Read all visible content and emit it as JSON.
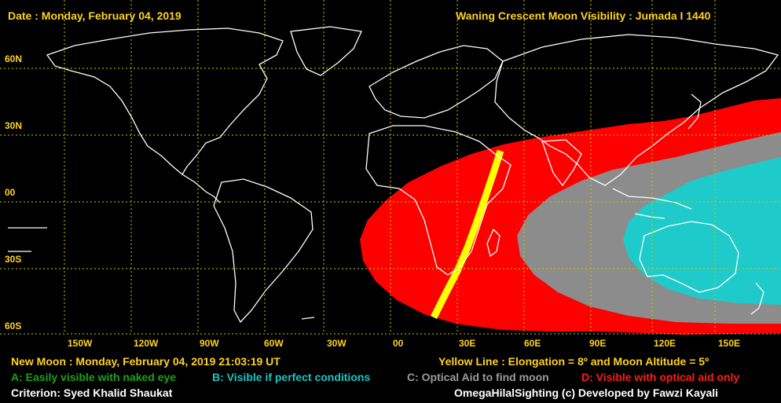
{
  "header": {
    "date": "Date : Monday, February 04, 2019",
    "title": "Waning Crescent Moon Visibility : Jumada I 1440"
  },
  "axes": {
    "lat_labels": [
      "60N",
      "30N",
      "00",
      "30S",
      "60S"
    ],
    "lon_labels": [
      "150W",
      "120W",
      "90W",
      "60W",
      "30W",
      "00",
      "30E",
      "60E",
      "90E",
      "120E",
      "150E"
    ]
  },
  "footer": {
    "new_moon": "New Moon : Monday, February 04, 2019  21:03:19  UT",
    "yellow_line": "Yellow Line : Elongation = 8º and Moon Altitude = 5º",
    "legend_a": "A: Easily visible with naked eye",
    "legend_b": "B: Visible if perfect conditions",
    "legend_c": "C: Optical Aid to find moon",
    "legend_d": "D: Visible with optical aid only",
    "criterion": "Criterion: Syed Khalid Shaukat",
    "credit": "OmegaHilalSighting  (c)  Developed by Fawzi Kayali"
  },
  "colors": {
    "zone_d": "#ff0000",
    "zone_c": "#8c8c8c",
    "zone_b": "#1fcaca",
    "yellow_line": "#ffff00",
    "grid": "#c8c800",
    "coast": "#ffffff",
    "label": "#ffd21e"
  }
}
